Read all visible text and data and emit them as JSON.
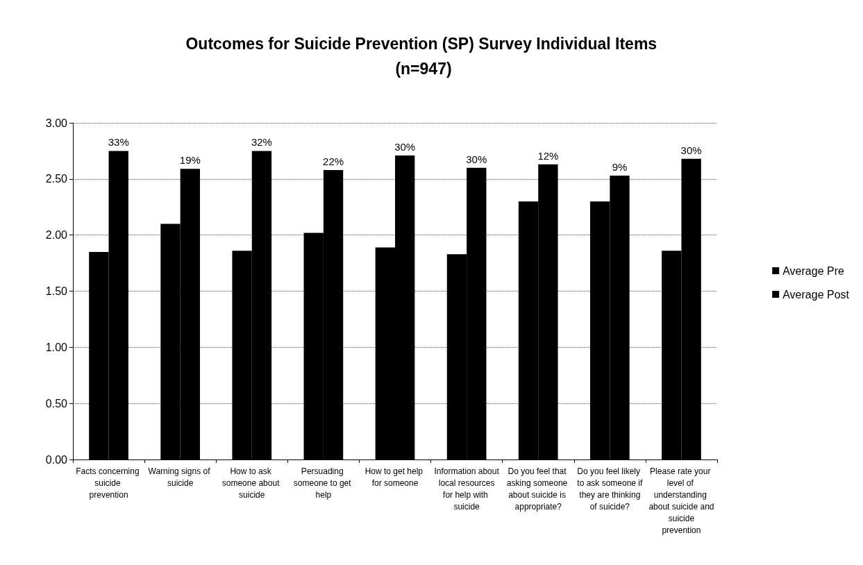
{
  "chart_data": {
    "type": "bar",
    "title": "Outcomes for Suicide Prevention (SP) Survey Individual Items (n=947)",
    "categories": [
      "Facts concerning suicide prevention",
      "Warning signs of suicide",
      "How to ask someone about suicide",
      "Persuading someone to get help",
      "How to get help for someone",
      "Information about local resources for help with suicide",
      "Do you feel that asking someone about suicide is appropriate?",
      "Do you feel likely to ask someone if they are thinking of suicide?",
      "Please rate your level of understanding about suicide and suicide prevention"
    ],
    "series": [
      {
        "name": "Average Pre",
        "color": "#000000",
        "values": [
          1.85,
          2.1,
          1.86,
          2.02,
          1.89,
          1.83,
          2.3,
          2.3,
          1.86
        ]
      },
      {
        "name": "Average Post",
        "color": "#000000",
        "values": [
          2.75,
          2.59,
          2.75,
          2.58,
          2.71,
          2.6,
          2.63,
          2.53,
          2.68
        ]
      }
    ],
    "annotations": [
      {
        "text": "33%",
        "x": "Facts concerning suicide prevention",
        "y": 2.75
      },
      {
        "text": "19%",
        "x": "Warning signs of suicide",
        "y": 2.59
      },
      {
        "text": "32%",
        "x": "How to ask someone about suicide",
        "y": 2.75
      },
      {
        "text": "22%",
        "x": "Persuading someone to get help",
        "y": 2.58
      },
      {
        "text": "30%",
        "x": "How to get help for someone",
        "y": 2.71
      },
      {
        "text": "30%",
        "x": "Information about local resources for help with suicide",
        "y": 2.6
      },
      {
        "text": "12%",
        "x": "Do you feel that asking someone about suicide is appropriate?",
        "y": 2.63
      },
      {
        "text": "9%",
        "x": "Do you feel likely to ask someone if they are thinking of suicide?",
        "y": 2.53
      },
      {
        "text": "30%",
        "x": "Please rate your level of understanding about suicide and suicide prevention",
        "y": 2.68
      }
    ],
    "ylim": [
      0,
      3
    ],
    "yticks": [
      {
        "value": 0,
        "label": "0.00"
      },
      {
        "value": 0.5,
        "label": "0.50"
      },
      {
        "value": 1,
        "label": "1.00"
      },
      {
        "value": 1.5,
        "label": "1.50"
      },
      {
        "value": 2,
        "label": "2.00"
      },
      {
        "value": 2.5,
        "label": "2.50"
      },
      {
        "value": 3,
        "label": "3.00"
      }
    ],
    "grid": "y",
    "legend": "right"
  }
}
